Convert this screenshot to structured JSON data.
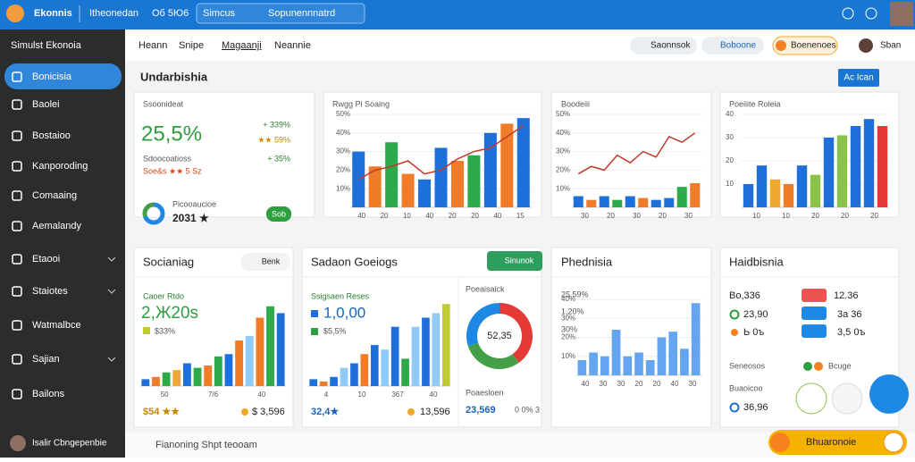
{
  "topbar": {
    "brand": "Ekonnis",
    "link": "Itheonedan",
    "code": "Oб 5Ю6",
    "search_scope": "Simcus",
    "search_placeholder": "Sopunennnatrd"
  },
  "sidebar": {
    "title": "Simulst Ekonoia",
    "items": [
      "Bonicisia",
      "Baolei",
      "Bostaioo",
      "Kanporoding",
      "Comaaing",
      "Aemalandy",
      "Etaooi",
      "Staiotes",
      "Watmalbce",
      "Sajian",
      "Bailons"
    ],
    "user": "Isalir Cbngepenbie"
  },
  "tabs": [
    "Heann",
    "Snipe",
    "Magaanji",
    "Neannie"
  ],
  "toolbar": [
    "Saonnsok",
    "Boboone",
    "Boenenoes",
    "Sban"
  ],
  "section": {
    "title": "Undarbishia",
    "button": "Ac Ican"
  },
  "cards": [
    {
      "title": "Ssoonideat",
      "big": "25,5%",
      "sub": "Sdoocoatioss",
      "note": "Soe&s ★★ 5 Sz",
      "list": [
        "+ 339%",
        "★★ 59%",
        "+ 35%"
      ],
      "foot_title": "Picooaucioe",
      "foot_value": "2031 ★",
      "button": "Sob",
      "donut": {
        "values": [
          70,
          30
        ],
        "colors": [
          "#1e88e5",
          "#43a047"
        ]
      }
    },
    {
      "title": "Rwgg Pi Soaing",
      "chart": {
        "values": [
          30,
          22,
          35,
          18,
          15,
          32,
          25,
          28,
          40,
          45,
          48
        ],
        "colors": [
          "#1e6fd9",
          "#f07c2a",
          "#2eaa4a",
          "#f07c2a",
          "#1e6fd9",
          "#1e6fd9",
          "#f07c2a",
          "#2eaa4a",
          "#1e6fd9",
          "#f07c2a",
          "#1e6fd9"
        ],
        "line": [
          15,
          20,
          22,
          25,
          18,
          20,
          26,
          30,
          32,
          38,
          44
        ],
        "line_color": "#c0392b",
        "ylim": [
          0,
          50
        ],
        "yticks": [
          {
            "value": 10,
            "label": "10%"
          },
          {
            "value": 20,
            "label": "20%"
          },
          {
            "value": 30,
            "label": "30%"
          },
          {
            "value": 40,
            "label": "40%"
          },
          {
            "value": 50,
            "label": "50%"
          }
        ],
        "xlabels": [
          "40",
          "20",
          "10",
          "40",
          "20",
          "20",
          "40",
          "15"
        ]
      }
    },
    {
      "title": "Boodeiii",
      "chart": {
        "values": [
          6,
          4,
          6,
          4,
          6,
          5,
          4,
          5,
          11,
          13
        ],
        "colors": [
          "#1e6fd9",
          "#f07c2a",
          "#1e6fd9",
          "#2eaa4a",
          "#1e6fd9",
          "#f07c2a",
          "#1e6fd9",
          "#1e6fd9",
          "#2eaa4a",
          "#f07c2a"
        ],
        "line": [
          18,
          22,
          20,
          28,
          24,
          30,
          27,
          38,
          35,
          40
        ],
        "line_color": "#c0392b",
        "ylim": [
          0,
          50
        ],
        "yticks": [
          {
            "value": 10,
            "label": "10%"
          },
          {
            "value": 20,
            "label": "20%"
          },
          {
            "value": 30,
            "label": "30%"
          },
          {
            "value": 40,
            "label": "40%"
          },
          {
            "value": 50,
            "label": "50%"
          }
        ],
        "xlabels": [
          "30",
          "20",
          "30",
          "20",
          "30"
        ]
      }
    },
    {
      "title": "Poeiiite Roleia",
      "chart": {
        "values": [
          10,
          18,
          12,
          10,
          18,
          14,
          30,
          31,
          35,
          38,
          35
        ],
        "colors": [
          "#1e6fd9",
          "#1e6fd9",
          "#f0a830",
          "#f07c2a",
          "#1e6fd9",
          "#8bc34a",
          "#1e6fd9",
          "#8bc34a",
          "#1e6fd9",
          "#1e6fd9",
          "#e53935"
        ],
        "ylim": [
          0,
          40
        ],
        "yticks": [
          10,
          20,
          30,
          40
        ],
        "xlabels": [
          "10",
          "10",
          "20",
          "20",
          "20"
        ]
      }
    },
    {
      "title": "Socianiag",
      "button": "Benk",
      "sub": "Caoer Rtdo",
      "big": "2,Ж20s",
      "note": "$33%",
      "chart": {
        "values": [
          3,
          4,
          6,
          7,
          10,
          8,
          9,
          13,
          14,
          20,
          22,
          30,
          35,
          32
        ],
        "colors": [
          "#1e6fd9",
          "#f07c2a",
          "#2eaa4a",
          "#f0a830",
          "#1e6fd9",
          "#2eaa4a",
          "#f07c2a",
          "#2eaa4a",
          "#1e6fd9",
          "#f07c2a",
          "#90caf9",
          "#f07c2a",
          "#2eaa4a",
          "#1e6fd9"
        ],
        "ylim": [
          0,
          40
        ],
        "xlabels": [
          "50",
          "7/6",
          "40"
        ]
      },
      "foot_left": "$54 ★★",
      "foot_right": "$ 3,596"
    },
    {
      "title": "Sadaon Goeiogs",
      "button": "Sinunok",
      "sub": "Ssigsaen Reses",
      "big": "1,0,00",
      "note": "$5,5%",
      "chart": {
        "values": [
          3,
          2,
          4,
          8,
          10,
          14,
          18,
          16,
          26,
          12,
          26,
          30,
          32,
          36
        ],
        "colors": [
          "#1e6fd9",
          "#f07c2a",
          "#1e6fd9",
          "#90caf9",
          "#1e6fd9",
          "#f07c2a",
          "#1e6fd9",
          "#90caf9",
          "#1e6fd9",
          "#2eaa4a",
          "#90caf9",
          "#1e6fd9",
          "#90caf9",
          "#c0ca33"
        ],
        "ylim": [
          0,
          40
        ],
        "xlabels": [
          "4",
          "10",
          "367",
          "40"
        ]
      },
      "foot_left": "32,4★",
      "foot_right": "13,596",
      "side_title": "Poeaisaick",
      "donut": {
        "values": [
          40,
          30,
          30
        ],
        "colors": [
          "#e53935",
          "#43a047",
          "#1e88e5"
        ],
        "center": "52,35"
      },
      "side_foot": "Poaesloen",
      "side_left": "23,569",
      "side_right": "0 0% 3"
    },
    {
      "title": "Phednisia",
      "list": [
        "25,59%",
        "1,20%",
        "30%"
      ],
      "chart": {
        "values": [
          8,
          12,
          10,
          24,
          10,
          12,
          8,
          20,
          23,
          14,
          38
        ],
        "colors": [
          "#64a5f0",
          "#64a5f0",
          "#64a5f0",
          "#64a5f0",
          "#64a5f0",
          "#64a5f0",
          "#64a5f0",
          "#64a5f0",
          "#64a5f0",
          "#64a5f0",
          "#64a5f0"
        ],
        "ylim": [
          0,
          40
        ],
        "yticks": [
          {
            "value": 10,
            "label": "10%"
          },
          {
            "value": 20,
            "label": "20%"
          },
          {
            "value": 30,
            "label": "30%"
          },
          {
            "value": 40,
            "label": "40%"
          }
        ],
        "xlabels": [
          "40",
          "30",
          "30",
          "20",
          "20",
          "40",
          "30"
        ]
      }
    },
    {
      "title": "Haidbisnia",
      "rows": [
        [
          "Bo,336",
          "12.36"
        ],
        [
          "23,90",
          "3a 36"
        ],
        [
          "Ь 0ъ",
          "3,5 0ъ"
        ]
      ],
      "sub": "Seneosos",
      "badge": "Bcuge",
      "foot_title": "Buaoicoo",
      "foot_value": "36,96"
    }
  ],
  "footer": "Fianoning Shpt teooam",
  "action": "Bhuaronoie"
}
